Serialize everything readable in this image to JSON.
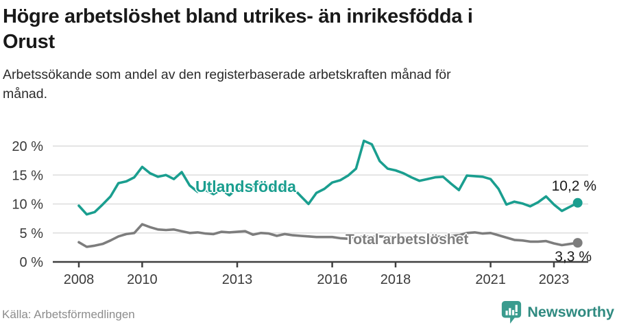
{
  "header": {
    "title_line1": "Högre arbetslöshet bland utrikes- än inrikesfödda i",
    "title_line2": "Orust",
    "subtitle_line1": "Arbetssökande som andel av den registerbaserade arbetskraften månad för",
    "subtitle_line2": "månad."
  },
  "chart_data": {
    "type": "line",
    "title": "Högre arbetslöshet bland utrikes- än inrikesfödda i Orust",
    "subtitle": "Arbetssökande som andel av den registerbaserade arbetskraften månad för månad.",
    "xlabel": "",
    "ylabel": "",
    "ylim": [
      0,
      21.5
    ],
    "xlim": [
      2008,
      2024
    ],
    "grid": "horizontal",
    "legend_position": "inline-labels",
    "unit": "%",
    "y_ticks": [
      {
        "value": 0,
        "label": "0 %"
      },
      {
        "value": 5,
        "label": "5 %"
      },
      {
        "value": 10,
        "label": "10 %"
      },
      {
        "value": 15,
        "label": "15 %"
      },
      {
        "value": 20,
        "label": "20 %"
      }
    ],
    "x_ticks": [
      {
        "value": 2008,
        "label": "2008"
      },
      {
        "value": 2010,
        "label": "2010"
      },
      {
        "value": 2013,
        "label": "2013"
      },
      {
        "value": 2016,
        "label": "2016"
      },
      {
        "value": 2018,
        "label": "2018"
      },
      {
        "value": 2021,
        "label": "2021"
      },
      {
        "value": 2023,
        "label": "2023"
      }
    ],
    "x": [
      2008.0,
      2008.25,
      2008.5,
      2008.75,
      2009.0,
      2009.25,
      2009.5,
      2009.75,
      2010.0,
      2010.25,
      2010.5,
      2010.75,
      2011.0,
      2011.25,
      2011.5,
      2011.75,
      2012.0,
      2012.25,
      2012.5,
      2012.75,
      2013.0,
      2013.25,
      2013.5,
      2013.75,
      2014.0,
      2014.25,
      2014.5,
      2014.75,
      2015.0,
      2015.25,
      2015.5,
      2015.75,
      2016.0,
      2016.25,
      2016.5,
      2016.75,
      2017.0,
      2017.25,
      2017.5,
      2017.75,
      2018.0,
      2018.25,
      2018.5,
      2018.75,
      2019.0,
      2019.25,
      2019.5,
      2019.75,
      2020.0,
      2020.25,
      2020.5,
      2020.75,
      2021.0,
      2021.25,
      2021.5,
      2021.75,
      2022.0,
      2022.25,
      2022.5,
      2022.75,
      2023.0,
      2023.25,
      2023.5,
      2023.75
    ],
    "series": [
      {
        "name": "Utlandsfödda",
        "color": "#1a9e8f",
        "end_label": "10,2 %",
        "end_value": 10.2,
        "values": [
          9.7,
          8.2,
          8.6,
          9.9,
          11.3,
          13.6,
          13.9,
          14.6,
          16.4,
          15.3,
          14.7,
          15.0,
          14.3,
          15.5,
          13.2,
          12.1,
          12.4,
          11.7,
          12.5,
          11.5,
          12.7,
          12.3,
          12.9,
          13.7,
          13.1,
          12.7,
          12.9,
          12.8,
          11.4,
          10.0,
          11.9,
          12.6,
          13.7,
          14.1,
          14.9,
          16.1,
          20.9,
          20.3,
          17.4,
          16.1,
          15.8,
          15.3,
          14.6,
          14.0,
          14.3,
          14.6,
          14.7,
          13.5,
          12.4,
          14.9,
          14.8,
          14.7,
          14.3,
          12.6,
          9.9,
          10.4,
          10.1,
          9.6,
          10.3,
          11.3,
          9.9,
          8.8,
          9.5,
          10.2
        ]
      },
      {
        "name": "Total arbetslöshet",
        "color": "#7d7d7d",
        "end_label": "3,3 %",
        "end_value": 3.3,
        "values": [
          3.4,
          2.6,
          2.8,
          3.1,
          3.7,
          4.4,
          4.8,
          5.0,
          6.5,
          6.0,
          5.6,
          5.5,
          5.6,
          5.3,
          5.0,
          5.1,
          4.9,
          4.8,
          5.2,
          5.1,
          5.2,
          5.3,
          4.7,
          5.0,
          4.9,
          4.5,
          4.8,
          4.6,
          4.5,
          4.4,
          4.3,
          4.3,
          4.3,
          4.1,
          4.0,
          4.2,
          4.4,
          4.3,
          4.4,
          4.3,
          4.3,
          4.2,
          4.1,
          4.2,
          4.2,
          4.3,
          4.4,
          4.5,
          4.6,
          5.0,
          5.1,
          4.9,
          5.0,
          4.6,
          4.2,
          3.8,
          3.7,
          3.5,
          3.5,
          3.6,
          3.2,
          2.9,
          3.1,
          3.3
        ]
      }
    ],
    "style": {
      "grid_color": "#dcdcdc",
      "axis_color": "#3f3f3f",
      "tick_label_color": "#3a3a3a"
    }
  },
  "footer": {
    "source": "Källa: Arbetsförmedlingen",
    "brand": "Newsworthy"
  }
}
